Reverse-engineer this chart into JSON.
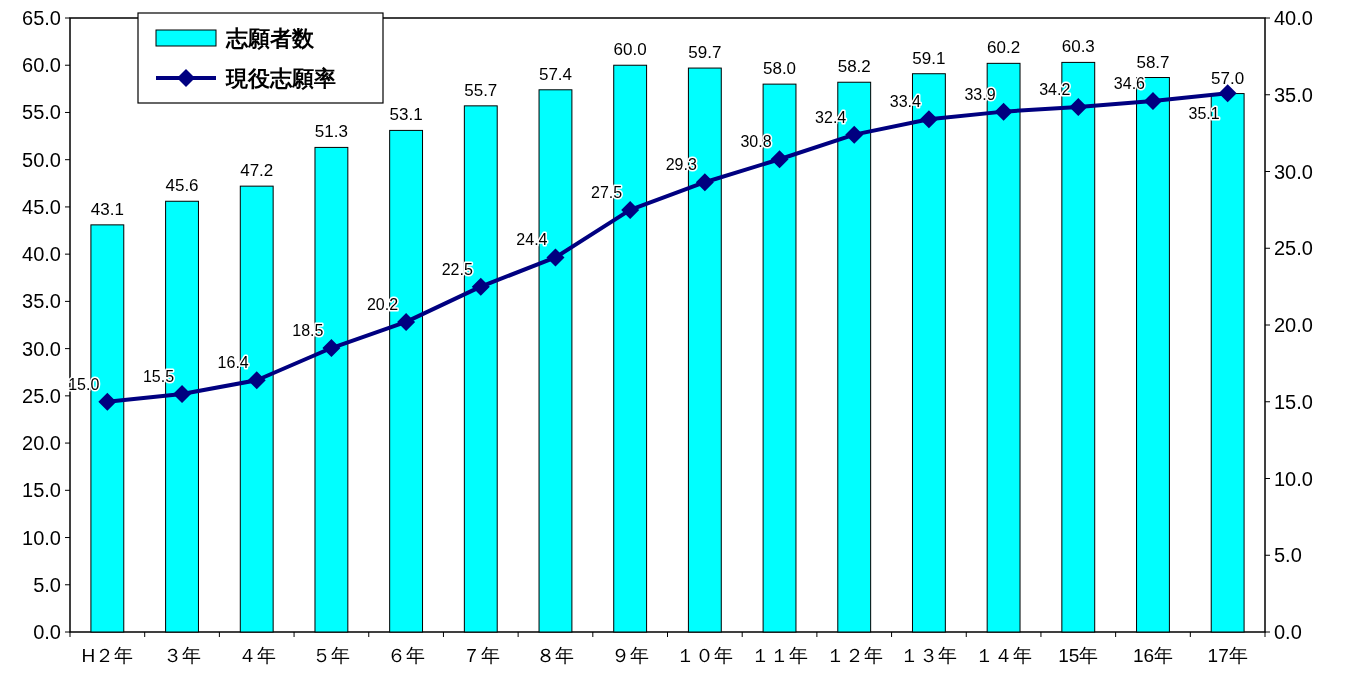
{
  "chart_data": {
    "type": "bar",
    "categories": [
      "H２年",
      "３年",
      "４年",
      "５年",
      "６年",
      "７年",
      "８年",
      "９年",
      "１０年",
      "１１年",
      "１２年",
      "１３年",
      "１４年",
      "15年",
      "16年",
      "17年"
    ],
    "series": [
      {
        "name": "志願者数",
        "color": "#00ffff",
        "values": [
          43.1,
          45.6,
          47.2,
          51.3,
          53.1,
          55.7,
          57.4,
          60.0,
          59.7,
          58.0,
          58.2,
          59.1,
          60.2,
          60.3,
          58.7,
          57.0
        ],
        "value_labels": [
          "43.1",
          "45.6",
          "47.2",
          "51.3",
          "53.1",
          "55.7",
          "57.4",
          "60.0",
          "59.7",
          "58.0",
          "58.2",
          "59.1",
          "60.2",
          "60.3",
          "58.7",
          "57.0"
        ]
      },
      {
        "name": "現役志願率",
        "type": "line",
        "axis": "y2",
        "color": "#000080",
        "marker": "diamond",
        "values": [
          15.0,
          15.5,
          16.4,
          18.5,
          20.2,
          22.5,
          24.4,
          27.5,
          29.3,
          30.8,
          32.4,
          33.4,
          33.9,
          34.2,
          34.6,
          35.1
        ],
        "value_labels": [
          "15.0",
          "15.5",
          "16.4",
          "18.5",
          "20.2",
          "22.5",
          "24.4",
          "27.5",
          "29.3",
          "30.8",
          "32.4",
          "33.4",
          "33.9",
          "34.2",
          "34.6",
          "35.1"
        ]
      }
    ],
    "ylim": [
      0,
      65
    ],
    "yticks": [
      {
        "value": 0,
        "label": "0.0"
      },
      {
        "value": 5,
        "label": "5.0"
      },
      {
        "value": 10,
        "label": "10.0"
      },
      {
        "value": 15,
        "label": "15.0"
      },
      {
        "value": 20,
        "label": "20.0"
      },
      {
        "value": 25,
        "label": "25.0"
      },
      {
        "value": 30,
        "label": "30.0"
      },
      {
        "value": 35,
        "label": "35.0"
      },
      {
        "value": 40,
        "label": "40.0"
      },
      {
        "value": 45,
        "label": "45.0"
      },
      {
        "value": 50,
        "label": "50.0"
      },
      {
        "value": 55,
        "label": "55.0"
      },
      {
        "value": 60,
        "label": "60.0"
      },
      {
        "value": 65,
        "label": "65.0"
      }
    ],
    "y2lim": [
      0,
      40
    ],
    "y2ticks": [
      {
        "value": 0,
        "label": "0.0"
      },
      {
        "value": 5,
        "label": "5.0"
      },
      {
        "value": 10,
        "label": "10.0"
      },
      {
        "value": 15,
        "label": "15.0"
      },
      {
        "value": 20,
        "label": "20.0"
      },
      {
        "value": 25,
        "label": "25.0"
      },
      {
        "value": 30,
        "label": "30.0"
      },
      {
        "value": 35,
        "label": "35.0"
      },
      {
        "value": 40,
        "label": "40.0"
      }
    ],
    "legend": "top left",
    "grid": false
  }
}
